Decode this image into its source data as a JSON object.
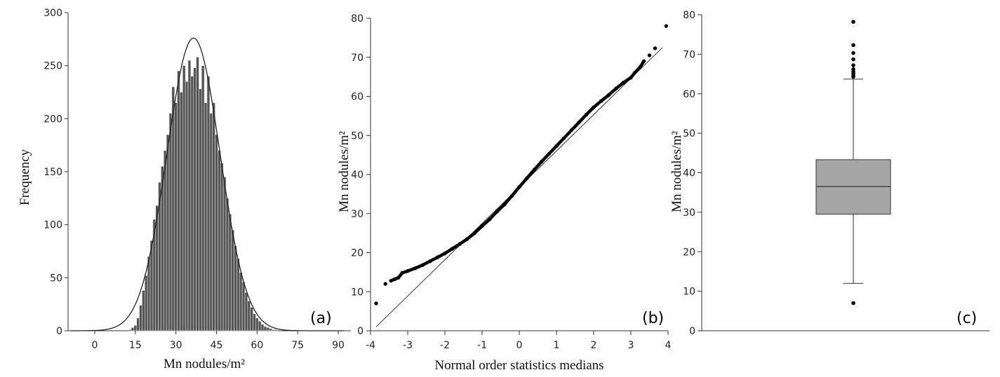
{
  "chart_data": [
    {
      "type": "histogram",
      "panel_label": "(a)",
      "xlabel": "Mn nodules/m²",
      "ylabel": "Frequency",
      "xlim": [
        -9,
        92
      ],
      "ylim": [
        0,
        300
      ],
      "xticks": [
        "0",
        "15",
        "30",
        "45",
        "60",
        "75",
        "90"
      ],
      "yticks": [
        "0",
        "50",
        "100",
        "150",
        "200",
        "250",
        "300"
      ],
      "bin_width": 1,
      "bins": [
        {
          "x": 13,
          "y": 1
        },
        {
          "x": 14,
          "y": 3
        },
        {
          "x": 15,
          "y": 5
        },
        {
          "x": 16,
          "y": 12
        },
        {
          "x": 17,
          "y": 24
        },
        {
          "x": 18,
          "y": 38
        },
        {
          "x": 19,
          "y": 52
        },
        {
          "x": 20,
          "y": 70
        },
        {
          "x": 21,
          "y": 85
        },
        {
          "x": 22,
          "y": 105
        },
        {
          "x": 23,
          "y": 118
        },
        {
          "x": 24,
          "y": 140
        },
        {
          "x": 25,
          "y": 155
        },
        {
          "x": 26,
          "y": 170
        },
        {
          "x": 27,
          "y": 185
        },
        {
          "x": 28,
          "y": 205
        },
        {
          "x": 29,
          "y": 230
        },
        {
          "x": 30,
          "y": 215
        },
        {
          "x": 31,
          "y": 245
        },
        {
          "x": 32,
          "y": 225
        },
        {
          "x": 33,
          "y": 250
        },
        {
          "x": 34,
          "y": 235
        },
        {
          "x": 35,
          "y": 255
        },
        {
          "x": 36,
          "y": 240
        },
        {
          "x": 37,
          "y": 248
        },
        {
          "x": 38,
          "y": 258
        },
        {
          "x": 39,
          "y": 228
        },
        {
          "x": 40,
          "y": 250
        },
        {
          "x": 41,
          "y": 215
        },
        {
          "x": 42,
          "y": 240
        },
        {
          "x": 43,
          "y": 205
        },
        {
          "x": 44,
          "y": 215
        },
        {
          "x": 45,
          "y": 185
        },
        {
          "x": 46,
          "y": 170
        },
        {
          "x": 47,
          "y": 158
        },
        {
          "x": 48,
          "y": 145
        },
        {
          "x": 49,
          "y": 125
        },
        {
          "x": 50,
          "y": 110
        },
        {
          "x": 51,
          "y": 95
        },
        {
          "x": 52,
          "y": 80
        },
        {
          "x": 53,
          "y": 68
        },
        {
          "x": 54,
          "y": 55
        },
        {
          "x": 55,
          "y": 46
        },
        {
          "x": 56,
          "y": 36
        },
        {
          "x": 57,
          "y": 28
        },
        {
          "x": 58,
          "y": 22
        },
        {
          "x": 59,
          "y": 16
        },
        {
          "x": 60,
          "y": 12
        },
        {
          "x": 61,
          "y": 9
        },
        {
          "x": 62,
          "y": 6
        },
        {
          "x": 63,
          "y": 4
        },
        {
          "x": 64,
          "y": 3
        },
        {
          "x": 65,
          "y": 2
        },
        {
          "x": 66,
          "y": 1
        },
        {
          "x": 67,
          "y": 1
        }
      ],
      "normal_fit": {
        "mean": 36.5,
        "sd": 9.8,
        "peak": 276
      }
    },
    {
      "type": "scatter",
      "subtype": "normal-probability-plot",
      "panel_label": "(b)",
      "xlabel": "Normal order statistics medians",
      "ylabel": "Mn nodules/m²",
      "xlim": [
        -4,
        4
      ],
      "ylim": [
        0,
        80
      ],
      "xticks": [
        "-4",
        "-3",
        "-2",
        "-1",
        "0",
        "1",
        "2",
        "3",
        "4"
      ],
      "yticks": [
        "0",
        "10",
        "20",
        "30",
        "40",
        "50",
        "60",
        "70",
        "80"
      ],
      "reference_line": {
        "x": [
          -3.85,
          3.85
        ],
        "y": [
          1,
          72.5
        ]
      },
      "points": [
        [
          -3.85,
          7
        ],
        [
          -3.6,
          12
        ],
        [
          -3.45,
          12.8
        ],
        [
          -3.35,
          13.2
        ],
        [
          -3.25,
          13.6
        ],
        [
          -3.15,
          14.8
        ],
        [
          -3.0,
          15.3
        ],
        [
          -2.8,
          16.0
        ],
        [
          -2.6,
          16.8
        ],
        [
          -2.4,
          17.8
        ],
        [
          -2.2,
          18.8
        ],
        [
          -2.0,
          19.8
        ],
        [
          -1.8,
          21.0
        ],
        [
          -1.6,
          22.2
        ],
        [
          -1.4,
          23.5
        ],
        [
          -1.2,
          25.0
        ],
        [
          -1.0,
          26.8
        ],
        [
          -0.8,
          28.5
        ],
        [
          -0.6,
          30.5
        ],
        [
          -0.4,
          32.3
        ],
        [
          -0.2,
          34.5
        ],
        [
          0.0,
          36.8
        ],
        [
          0.2,
          39.0
        ],
        [
          0.4,
          41.2
        ],
        [
          0.6,
          43.3
        ],
        [
          0.8,
          45.3
        ],
        [
          1.0,
          47.3
        ],
        [
          1.2,
          49.3
        ],
        [
          1.4,
          51.3
        ],
        [
          1.6,
          53.3
        ],
        [
          1.8,
          55.3
        ],
        [
          2.0,
          57.2
        ],
        [
          2.2,
          58.8
        ],
        [
          2.4,
          60.3
        ],
        [
          2.6,
          62.0
        ],
        [
          2.8,
          63.5
        ],
        [
          3.0,
          64.8
        ],
        [
          3.1,
          66.0
        ],
        [
          3.25,
          67.5
        ],
        [
          3.35,
          69.0
        ],
        [
          3.5,
          70.5
        ],
        [
          3.65,
          72.3
        ],
        [
          3.95,
          78.0
        ]
      ]
    },
    {
      "type": "box",
      "panel_label": "(c)",
      "ylabel": "Mn nodules/m²",
      "ylim": [
        0,
        80
      ],
      "yticks": [
        "0",
        "10",
        "20",
        "30",
        "40",
        "50",
        "60",
        "70",
        "80"
      ],
      "box": {
        "whisker_low": 12,
        "q1": 29.5,
        "median": 36.5,
        "q3": 43.3,
        "whisker_high": 63.7
      },
      "outliers": [
        7,
        64.3,
        64.8,
        65.2,
        65.6,
        66.2,
        67.2,
        68.7,
        70.3,
        72.3,
        78.2
      ]
    }
  ]
}
